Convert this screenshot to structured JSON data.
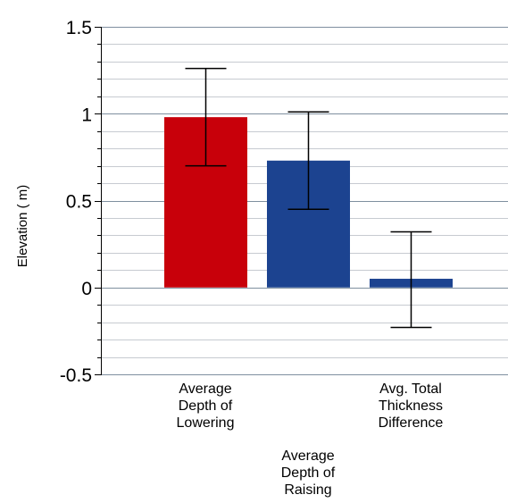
{
  "chart_data": {
    "type": "bar",
    "title": "",
    "xlabel": "",
    "ylabel": "Elevation ( m)",
    "ylim": [
      -0.5,
      1.5
    ],
    "major_ticks": [
      -0.5,
      0,
      0.5,
      1,
      1.5
    ],
    "tick_labels": [
      "-0.5",
      "0",
      "0.5",
      "1",
      "1.5"
    ],
    "minor_step": 0.1,
    "grid": true,
    "legend": "none",
    "categories": [
      [
        "Average",
        "Depth of",
        "Lowering"
      ],
      [
        "Average",
        "Depth of",
        "Raising"
      ],
      [
        "Avg. Total",
        "Thickness",
        "Difference"
      ]
    ],
    "values": [
      0.98,
      0.73,
      0.05
    ],
    "error_low": [
      0.7,
      0.45,
      -0.23
    ],
    "error_high": [
      1.26,
      1.01,
      0.32
    ],
    "colors": [
      "#C8000A",
      "#1C4390",
      "#1C4390"
    ]
  }
}
